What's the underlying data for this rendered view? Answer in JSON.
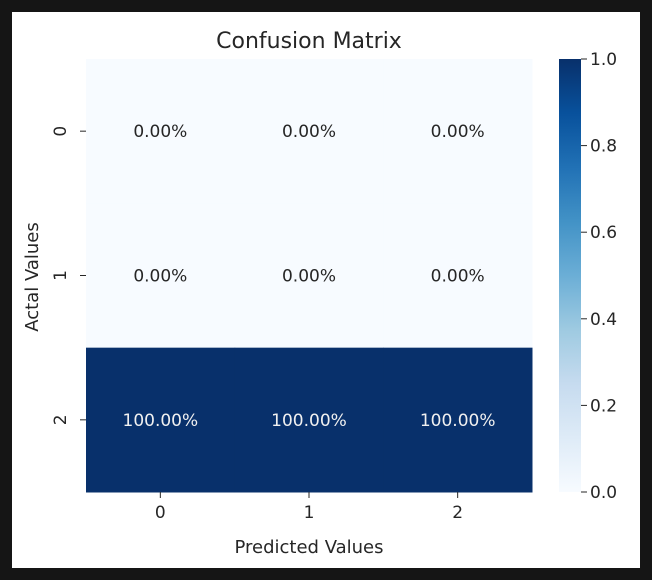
{
  "chart_data": {
    "type": "heatmap",
    "title": "Confusion Matrix",
    "xlabel": "Predicted Values",
    "ylabel": "Actal Values",
    "x_categories": [
      "0",
      "1",
      "2"
    ],
    "y_categories": [
      "0",
      "1",
      "2"
    ],
    "values": [
      [
        0.0,
        0.0,
        0.0
      ],
      [
        0.0,
        0.0,
        0.0
      ],
      [
        1.0,
        1.0,
        1.0
      ]
    ],
    "cell_labels": [
      [
        "0.00%",
        "0.00%",
        "0.00%"
      ],
      [
        "0.00%",
        "0.00%",
        "0.00%"
      ],
      [
        "100.00%",
        "100.00%",
        "100.00%"
      ]
    ],
    "colormap": "Blues",
    "colors": {
      "low": "#f7fbff",
      "high": "#08306b",
      "text_on_dark": "#f0f0f0",
      "text_on_light": "#262626"
    },
    "colorbar": {
      "range": [
        0.0,
        1.0
      ],
      "ticks": [
        0.0,
        0.2,
        0.4,
        0.6,
        0.8,
        1.0
      ],
      "tick_labels": [
        "0.0",
        "0.2",
        "0.4",
        "0.6",
        "0.8",
        "1.0"
      ]
    }
  }
}
